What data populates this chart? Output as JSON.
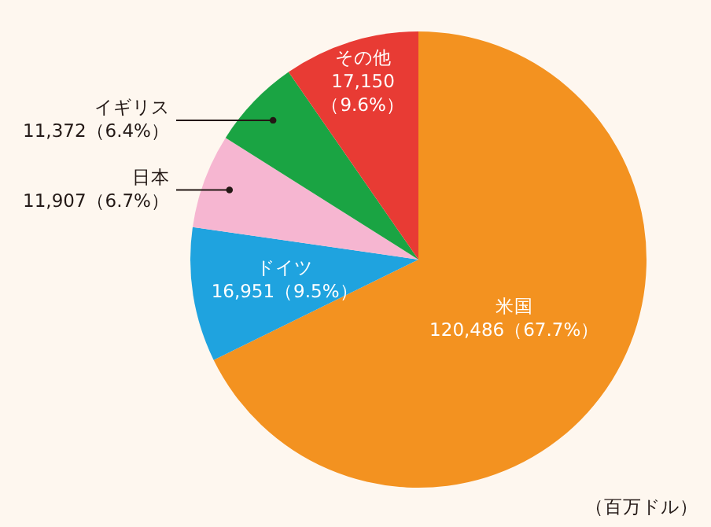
{
  "chart_data": {
    "type": "pie",
    "categories": [
      "米国",
      "ドイツ",
      "日本",
      "イギリス",
      "その他"
    ],
    "values": [
      120486,
      16951,
      11907,
      11372,
      17150
    ],
    "value_labels": [
      "120,486（67.7%）",
      "16,951（9.5%）",
      "11,907（6.7%）",
      "11,372（6.4%）",
      "17,150（9.6%）"
    ],
    "colors": [
      "#f39220",
      "#1fa3df",
      "#f6b6d1",
      "#1aa443",
      "#e83b34"
    ],
    "annotations": [
      "（百万ドル）"
    ]
  }
}
